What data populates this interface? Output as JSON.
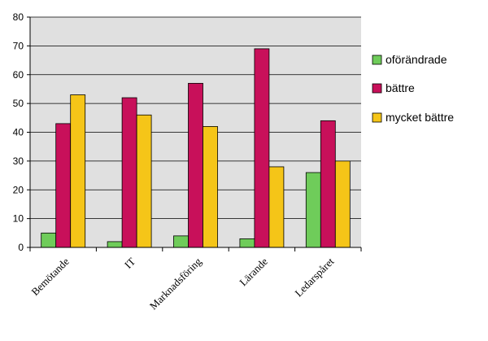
{
  "chart_data": {
    "type": "bar",
    "title": "",
    "xlabel": "",
    "ylabel": "",
    "categories": [
      "Bemötande",
      "IT",
      "Marknadsföring",
      "Lärande",
      "Ledarspåret"
    ],
    "series": [
      {
        "name": "oförändrade",
        "values": [
          5,
          2,
          4,
          3,
          26
        ],
        "color": "#6fcc5a"
      },
      {
        "name": "bättre",
        "values": [
          43,
          52,
          57,
          69,
          44
        ],
        "color": "#c8105a"
      },
      {
        "name": "mycket bättre",
        "values": [
          53,
          46,
          42,
          28,
          30
        ],
        "color": "#f5c518"
      }
    ],
    "ylim": [
      0,
      80
    ],
    "yticks": [
      0,
      10,
      20,
      30,
      40,
      50,
      60,
      70,
      80
    ],
    "grid": true,
    "legend_position": "right",
    "plot_background": "#e0e0e0"
  }
}
